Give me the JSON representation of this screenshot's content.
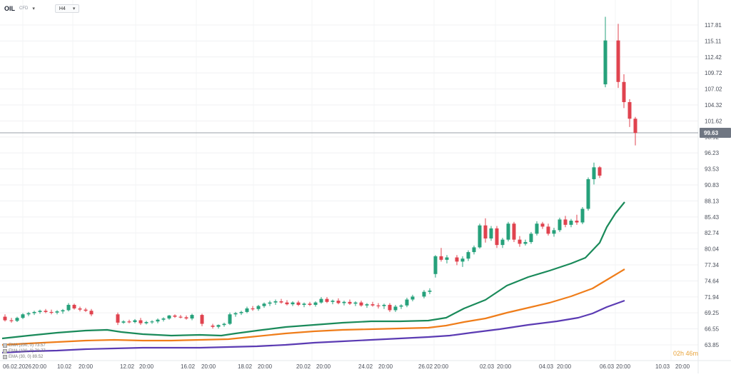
{
  "header": {
    "symbol": "OIL",
    "symbol_type": "CFD",
    "timeframe": "H4"
  },
  "indicators": [
    {
      "label": "EMA (200, 0) 73.57",
      "color": "#5b3bb3"
    },
    {
      "label": "EMA (100, 0) 78.77",
      "color": "#ef7d1a"
    },
    {
      "label": "EMA (30, 0) 89.52",
      "color": "#1a8a5a"
    }
  ],
  "countdown": "02h 46m",
  "current_price": {
    "label": "99.63",
    "value": 99.63
  },
  "colors": {
    "up": "#26a17b",
    "down": "#e0434f",
    "ema_fast": "#1a8a5a",
    "ema_mid": "#ef7d1a",
    "ema_slow": "#5b3bb3"
  },
  "chart_data": {
    "type": "candlestick",
    "ylim": [
      63.85,
      120.5
    ],
    "y_ticks": [
      "117.81",
      "115.11",
      "112.42",
      "109.72",
      "107.02",
      "104.32",
      "101.62",
      "98.92",
      "96.23",
      "93.53",
      "90.83",
      "88.13",
      "85.43",
      "82.74",
      "80.04",
      "77.34",
      "74.64",
      "71.94",
      "69.25",
      "66.55",
      "63.85"
    ],
    "x_ticks": [
      "06.02.2026",
      "20:00",
      "10.02",
      "20:00",
      "12.02",
      "20:00",
      "16.02",
      "20:00",
      "18.02",
      "20:00",
      "20.02",
      "20:00",
      "24.02",
      "20:00",
      "26.02",
      "20:00",
      "02.03",
      "20:00",
      "04.03",
      "20:00",
      "06.03",
      "20:00",
      "10.03",
      "20:00"
    ],
    "candles": [
      {
        "o": 68.6,
        "h": 69.0,
        "l": 67.8,
        "c": 68.0
      },
      {
        "o": 68.0,
        "h": 68.4,
        "l": 67.6,
        "c": 67.9
      },
      {
        "o": 67.9,
        "h": 68.6,
        "l": 67.7,
        "c": 68.4
      },
      {
        "o": 68.4,
        "h": 69.2,
        "l": 68.2,
        "c": 69.0
      },
      {
        "o": 69.0,
        "h": 69.4,
        "l": 68.7,
        "c": 69.2
      },
      {
        "o": 69.2,
        "h": 69.6,
        "l": 68.9,
        "c": 69.4
      },
      {
        "o": 69.4,
        "h": 69.8,
        "l": 69.1,
        "c": 69.6
      },
      {
        "o": 69.6,
        "h": 69.9,
        "l": 69.2,
        "c": 69.4
      },
      {
        "o": 69.4,
        "h": 69.8,
        "l": 69.0,
        "c": 69.3
      },
      {
        "o": 69.3,
        "h": 69.7,
        "l": 69.0,
        "c": 69.5
      },
      {
        "o": 69.5,
        "h": 69.9,
        "l": 69.1,
        "c": 69.7
      },
      {
        "o": 69.7,
        "h": 70.9,
        "l": 69.5,
        "c": 70.6
      },
      {
        "o": 70.6,
        "h": 70.8,
        "l": 69.8,
        "c": 70.0
      },
      {
        "o": 70.0,
        "h": 70.3,
        "l": 69.5,
        "c": 69.8
      },
      {
        "o": 69.8,
        "h": 70.1,
        "l": 69.4,
        "c": 69.6
      },
      {
        "o": 69.6,
        "h": 69.9,
        "l": 68.7,
        "c": 69.0
      },
      {
        "o": 69.0,
        "h": 69.3,
        "l": 67.2,
        "c": 67.6
      },
      {
        "o": 67.6,
        "h": 68.0,
        "l": 67.4,
        "c": 67.8
      },
      {
        "o": 67.8,
        "h": 68.1,
        "l": 67.5,
        "c": 67.7
      },
      {
        "o": 67.7,
        "h": 68.2,
        "l": 67.5,
        "c": 68.0
      },
      {
        "o": 68.0,
        "h": 68.4,
        "l": 67.2,
        "c": 67.5
      },
      {
        "o": 67.5,
        "h": 67.9,
        "l": 67.3,
        "c": 67.7
      },
      {
        "o": 67.7,
        "h": 68.0,
        "l": 67.4,
        "c": 67.8
      },
      {
        "o": 67.8,
        "h": 68.3,
        "l": 67.5,
        "c": 68.1
      },
      {
        "o": 68.1,
        "h": 68.5,
        "l": 67.8,
        "c": 68.3
      },
      {
        "o": 68.3,
        "h": 68.9,
        "l": 68.1,
        "c": 68.8
      },
      {
        "o": 68.8,
        "h": 69.0,
        "l": 68.4,
        "c": 68.6
      },
      {
        "o": 68.6,
        "h": 68.9,
        "l": 68.3,
        "c": 68.5
      },
      {
        "o": 68.5,
        "h": 68.8,
        "l": 68.1,
        "c": 68.3
      },
      {
        "o": 68.3,
        "h": 69.1,
        "l": 68.0,
        "c": 68.9
      },
      {
        "o": 68.9,
        "h": 69.1,
        "l": 67.0,
        "c": 67.4
      },
      {
        "o": 67.1,
        "h": 67.4,
        "l": 66.6,
        "c": 66.9
      },
      {
        "o": 66.9,
        "h": 67.3,
        "l": 66.6,
        "c": 67.2
      },
      {
        "o": 67.2,
        "h": 67.6,
        "l": 66.9,
        "c": 67.4
      },
      {
        "o": 67.4,
        "h": 69.3,
        "l": 67.2,
        "c": 69.0
      },
      {
        "o": 69.0,
        "h": 69.4,
        "l": 68.6,
        "c": 69.2
      },
      {
        "o": 69.2,
        "h": 69.6,
        "l": 68.9,
        "c": 69.4
      },
      {
        "o": 69.4,
        "h": 70.3,
        "l": 69.2,
        "c": 70.0
      },
      {
        "o": 70.0,
        "h": 70.4,
        "l": 69.6,
        "c": 69.9
      },
      {
        "o": 69.9,
        "h": 70.6,
        "l": 69.6,
        "c": 70.4
      },
      {
        "o": 70.4,
        "h": 71.0,
        "l": 70.1,
        "c": 70.8
      },
      {
        "o": 70.8,
        "h": 71.3,
        "l": 70.4,
        "c": 71.0
      },
      {
        "o": 71.0,
        "h": 71.5,
        "l": 70.6,
        "c": 71.2
      },
      {
        "o": 71.2,
        "h": 71.6,
        "l": 70.8,
        "c": 71.0
      },
      {
        "o": 71.0,
        "h": 71.4,
        "l": 70.5,
        "c": 70.7
      },
      {
        "o": 70.7,
        "h": 71.2,
        "l": 70.4,
        "c": 71.0
      },
      {
        "o": 71.0,
        "h": 71.3,
        "l": 70.4,
        "c": 70.6
      },
      {
        "o": 70.6,
        "h": 71.0,
        "l": 70.2,
        "c": 70.8
      },
      {
        "o": 70.8,
        "h": 71.1,
        "l": 70.4,
        "c": 70.6
      },
      {
        "o": 70.6,
        "h": 71.2,
        "l": 70.3,
        "c": 71.0
      },
      {
        "o": 71.0,
        "h": 71.9,
        "l": 70.8,
        "c": 71.6
      },
      {
        "o": 71.6,
        "h": 71.9,
        "l": 70.9,
        "c": 71.1
      },
      {
        "o": 71.1,
        "h": 71.5,
        "l": 70.7,
        "c": 71.3
      },
      {
        "o": 71.3,
        "h": 71.7,
        "l": 70.7,
        "c": 70.9
      },
      {
        "o": 70.9,
        "h": 71.3,
        "l": 70.5,
        "c": 71.1
      },
      {
        "o": 71.1,
        "h": 71.5,
        "l": 70.6,
        "c": 70.8
      },
      {
        "o": 70.8,
        "h": 71.2,
        "l": 70.4,
        "c": 71.0
      },
      {
        "o": 71.0,
        "h": 71.3,
        "l": 70.3,
        "c": 70.5
      },
      {
        "o": 70.5,
        "h": 70.9,
        "l": 70.1,
        "c": 70.7
      },
      {
        "o": 70.7,
        "h": 71.1,
        "l": 70.3,
        "c": 70.5
      },
      {
        "o": 70.5,
        "h": 70.9,
        "l": 70.0,
        "c": 70.4
      },
      {
        "o": 70.4,
        "h": 70.8,
        "l": 69.9,
        "c": 70.6
      },
      {
        "o": 70.6,
        "h": 70.9,
        "l": 69.4,
        "c": 69.7
      },
      {
        "o": 69.7,
        "h": 70.6,
        "l": 69.4,
        "c": 70.3
      },
      {
        "o": 70.3,
        "h": 70.7,
        "l": 69.9,
        "c": 70.5
      },
      {
        "o": 70.5,
        "h": 71.8,
        "l": 70.2,
        "c": 71.5
      },
      {
        "o": 71.5,
        "h": 72.3,
        "l": 71.2,
        "c": 72.0
      },
      {
        "o": 72.0,
        "h": 73.1,
        "l": 71.7,
        "c": 72.8
      },
      {
        "o": 72.8,
        "h": 73.4,
        "l": 72.4,
        "c": 73.0
      },
      {
        "o": 75.8,
        "h": 79.0,
        "l": 75.2,
        "c": 78.8
      },
      {
        "o": 78.8,
        "h": 80.2,
        "l": 77.9,
        "c": 78.2
      },
      {
        "o": 78.2,
        "h": 79.0,
        "l": 77.6,
        "c": 78.6
      },
      {
        "o": 78.6,
        "h": 79.0,
        "l": 77.3,
        "c": 77.9
      },
      {
        "o": 77.9,
        "h": 78.8,
        "l": 77.0,
        "c": 78.4
      },
      {
        "o": 78.4,
        "h": 79.8,
        "l": 78.0,
        "c": 79.5
      },
      {
        "o": 79.5,
        "h": 80.6,
        "l": 79.1,
        "c": 80.3
      },
      {
        "o": 80.3,
        "h": 84.3,
        "l": 80.1,
        "c": 84.0
      },
      {
        "o": 84.0,
        "h": 85.2,
        "l": 81.1,
        "c": 81.8
      },
      {
        "o": 81.8,
        "h": 83.9,
        "l": 81.4,
        "c": 83.5
      },
      {
        "o": 83.5,
        "h": 83.9,
        "l": 80.2,
        "c": 80.7
      },
      {
        "o": 80.7,
        "h": 81.9,
        "l": 80.2,
        "c": 81.6
      },
      {
        "o": 81.6,
        "h": 84.6,
        "l": 81.3,
        "c": 84.3
      },
      {
        "o": 84.3,
        "h": 84.6,
        "l": 81.2,
        "c": 81.6
      },
      {
        "o": 81.6,
        "h": 82.2,
        "l": 80.4,
        "c": 80.9
      },
      {
        "o": 80.9,
        "h": 81.6,
        "l": 80.6,
        "c": 81.2
      },
      {
        "o": 81.2,
        "h": 82.9,
        "l": 80.9,
        "c": 82.6
      },
      {
        "o": 82.6,
        "h": 84.7,
        "l": 82.3,
        "c": 84.3
      },
      {
        "o": 84.3,
        "h": 84.6,
        "l": 83.4,
        "c": 83.8
      },
      {
        "o": 83.8,
        "h": 84.3,
        "l": 82.3,
        "c": 82.6
      },
      {
        "o": 82.6,
        "h": 83.6,
        "l": 82.1,
        "c": 83.2
      },
      {
        "o": 83.2,
        "h": 85.3,
        "l": 82.9,
        "c": 85.0
      },
      {
        "o": 85.0,
        "h": 85.6,
        "l": 83.7,
        "c": 84.1
      },
      {
        "o": 84.1,
        "h": 85.1,
        "l": 83.7,
        "c": 84.8
      },
      {
        "o": 84.8,
        "h": 85.8,
        "l": 84.1,
        "c": 84.5
      },
      {
        "o": 84.5,
        "h": 87.1,
        "l": 84.2,
        "c": 86.8
      },
      {
        "o": 86.8,
        "h": 92.1,
        "l": 86.5,
        "c": 91.8
      },
      {
        "o": 91.8,
        "h": 94.6,
        "l": 90.9,
        "c": 93.8
      },
      {
        "o": 93.8,
        "h": 94.0,
        "l": 92.0,
        "c": 92.4
      },
      {
        "o": 107.8,
        "h": 119.2,
        "l": 107.3,
        "c": 115.2
      },
      {
        "o": 115.2,
        "h": 118.0,
        "l": 107.2,
        "c": 108.2
      },
      {
        "o": 108.2,
        "h": 109.5,
        "l": 103.8,
        "c": 104.8
      },
      {
        "o": 104.8,
        "h": 105.3,
        "l": 100.6,
        "c": 102.0
      },
      {
        "o": 102.0,
        "h": 102.3,
        "l": 97.5,
        "c": 99.6
      }
    ],
    "candle_x": [
      7,
      16,
      24,
      32,
      40,
      48,
      56,
      64,
      72,
      80,
      88,
      96,
      104,
      112,
      120,
      128,
      165,
      173,
      181,
      189,
      197,
      205,
      213,
      221,
      229,
      237,
      245,
      253,
      261,
      269,
      283,
      298,
      306,
      314,
      322,
      330,
      338,
      346,
      354,
      362,
      370,
      378,
      386,
      394,
      402,
      410,
      418,
      426,
      434,
      442,
      450,
      458,
      466,
      474,
      482,
      490,
      498,
      506,
      514,
      522,
      530,
      538,
      546,
      554,
      562,
      570,
      578,
      594,
      602,
      610,
      618,
      626,
      640,
      648,
      656,
      664,
      672,
      680,
      688,
      696,
      704,
      712,
      720,
      728,
      736,
      744,
      752,
      760,
      768,
      776,
      784,
      792,
      800,
      808,
      816,
      824,
      832,
      840,
      848,
      866,
      874,
      882,
      890
    ],
    "ema_30": [
      [
        3,
        474
      ],
      [
        40,
        470
      ],
      [
        80,
        466
      ],
      [
        120,
        463
      ],
      [
        150,
        462
      ],
      [
        170,
        465
      ],
      [
        200,
        468
      ],
      [
        240,
        470
      ],
      [
        280,
        469
      ],
      [
        310,
        470
      ],
      [
        330,
        467
      ],
      [
        360,
        463
      ],
      [
        400,
        458
      ],
      [
        440,
        455
      ],
      [
        480,
        452
      ],
      [
        520,
        450
      ],
      [
        560,
        450
      ],
      [
        600,
        449
      ],
      [
        625,
        445
      ],
      [
        650,
        432
      ],
      [
        680,
        420
      ],
      [
        710,
        400
      ],
      [
        740,
        388
      ],
      [
        770,
        379
      ],
      [
        800,
        369
      ],
      [
        820,
        361
      ],
      [
        840,
        340
      ],
      [
        850,
        318
      ],
      [
        862,
        299
      ],
      [
        875,
        283
      ]
    ],
    "ema_100": [
      [
        3,
        483
      ],
      [
        40,
        481
      ],
      [
        80,
        479
      ],
      [
        120,
        477
      ],
      [
        160,
        476
      ],
      [
        200,
        477
      ],
      [
        240,
        477
      ],
      [
        280,
        476
      ],
      [
        320,
        475
      ],
      [
        350,
        472
      ],
      [
        400,
        467
      ],
      [
        440,
        464
      ],
      [
        480,
        462
      ],
      [
        520,
        461
      ],
      [
        560,
        460
      ],
      [
        600,
        459
      ],
      [
        625,
        456
      ],
      [
        650,
        451
      ],
      [
        680,
        446
      ],
      [
        710,
        438
      ],
      [
        740,
        431
      ],
      [
        770,
        424
      ],
      [
        800,
        415
      ],
      [
        830,
        404
      ],
      [
        850,
        392
      ],
      [
        875,
        377
      ]
    ],
    "ema_200": [
      [
        3,
        494
      ],
      [
        40,
        492
      ],
      [
        80,
        491
      ],
      [
        120,
        489
      ],
      [
        160,
        488
      ],
      [
        200,
        487
      ],
      [
        240,
        487
      ],
      [
        280,
        487
      ],
      [
        320,
        486
      ],
      [
        360,
        485
      ],
      [
        400,
        483
      ],
      [
        440,
        480
      ],
      [
        480,
        478
      ],
      [
        520,
        476
      ],
      [
        560,
        474
      ],
      [
        600,
        472
      ],
      [
        630,
        470
      ],
      [
        660,
        466
      ],
      [
        700,
        461
      ],
      [
        740,
        455
      ],
      [
        780,
        450
      ],
      [
        810,
        445
      ],
      [
        830,
        439
      ],
      [
        850,
        430
      ],
      [
        875,
        421
      ]
    ]
  }
}
